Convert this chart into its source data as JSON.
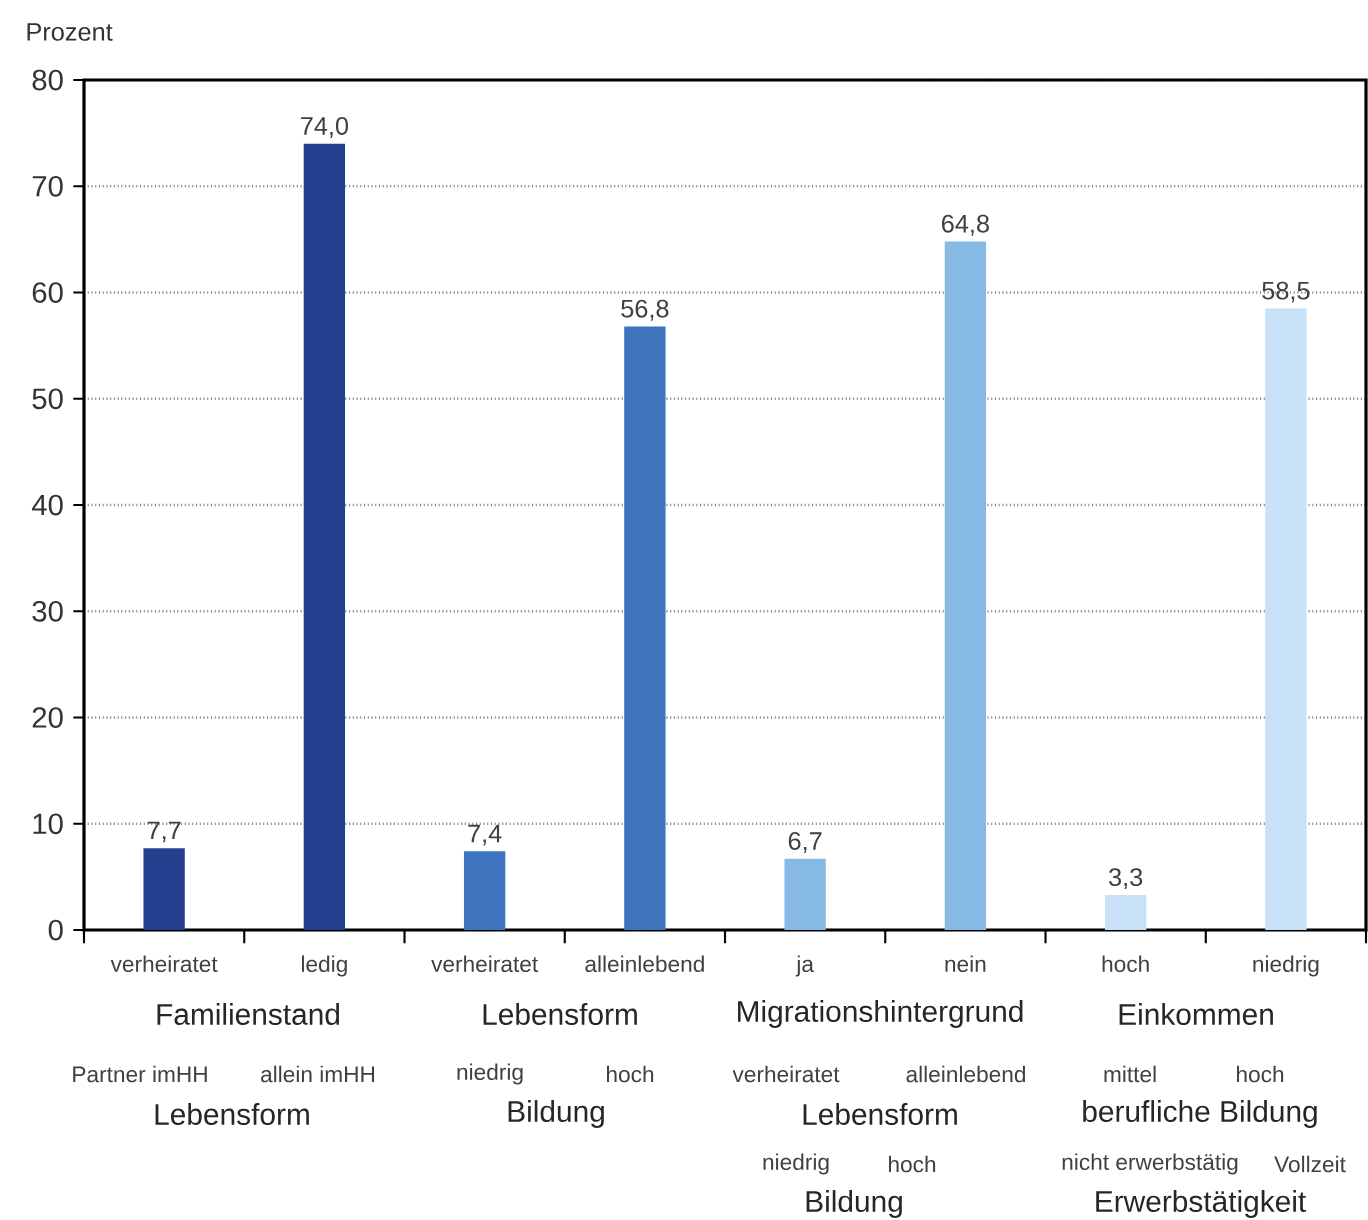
{
  "chart_data": {
    "type": "bar",
    "ylabel": "Prozent",
    "categories": [
      "verheiratet",
      "ledig",
      "verheiratet",
      "alleinlebend",
      "ja",
      "nein",
      "hoch",
      "niedrig"
    ],
    "values": [
      7.7,
      74.0,
      7.4,
      56.8,
      6.7,
      64.8,
      3.3,
      58.5
    ],
    "value_labels": [
      "7,7",
      "74,0",
      "7,4",
      "56,8",
      "6,7",
      "64,8",
      "3,3",
      "58,5"
    ],
    "colors": [
      "#253f8f",
      "#253f8f",
      "#3d74bd",
      "#3d74bd",
      "#86bae5",
      "#86bae5",
      "#c9e1f6",
      "#c9e1f6"
    ],
    "ylim": [
      0,
      80
    ],
    "yticks": [
      0,
      10,
      20,
      30,
      40,
      50,
      60,
      70,
      80
    ],
    "grid": "y",
    "annotations": [
      "Familienstand",
      "Lebensform",
      "Migrationshintergrund",
      "Einkommen",
      "Partner imHH",
      "allein imHH",
      "Lebensform",
      "niedrig",
      "hoch",
      "Bildung",
      "verheiratet",
      "alleinlebend",
      "Lebensform",
      "mittel",
      "hoch",
      "berufliche Bildung",
      "niedrig",
      "hoch",
      "Bildung",
      "nicht erwerbstätig",
      "Vollzeit",
      "Erwerbstätigkeit"
    ]
  }
}
